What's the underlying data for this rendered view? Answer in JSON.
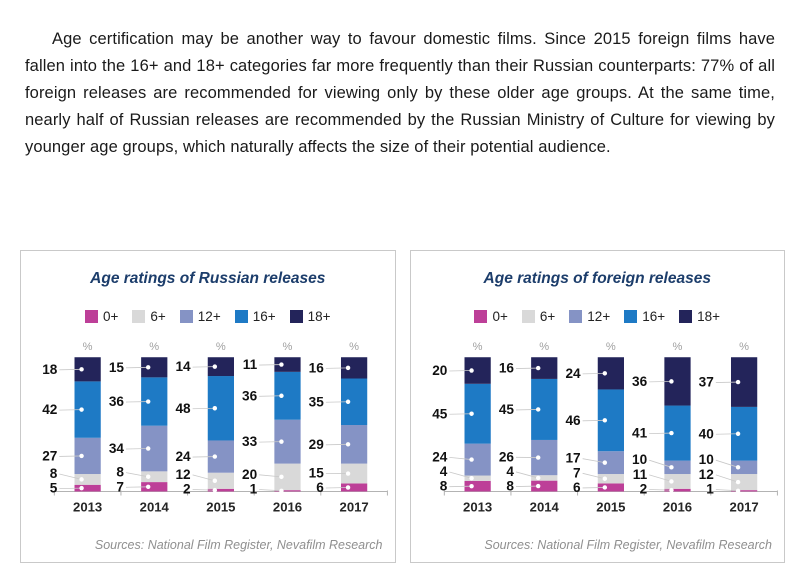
{
  "paragraph": {
    "text": "Age certification may be another way to favour domestic films. Since 2015 foreign films have fallen into the 16+ and 18+ categories far more frequently than their Russian counterparts: 77% of all foreign releases are recommended for viewing only by these older age groups. At the same time, nearly half of Russian releases are recommended by the Russian Ministry of Culture for viewing by younger age groups, which naturally affects the size of their potential audience."
  },
  "chart_data": [
    {
      "type": "bar",
      "stacked": true,
      "percent_total": true,
      "title": "Age ratings of Russian releases",
      "categories": [
        "2013",
        "2014",
        "2015",
        "2016",
        "2017"
      ],
      "series": [
        {
          "name": "0+",
          "color": "#bd3f98",
          "values": [
            5,
            7,
            2,
            1,
            6
          ]
        },
        {
          "name": "6+",
          "color": "#d9d9d9",
          "values": [
            8,
            8,
            12,
            20,
            15
          ]
        },
        {
          "name": "12+",
          "color": "#8593c5",
          "values": [
            27,
            34,
            24,
            33,
            29
          ]
        },
        {
          "name": "16+",
          "color": "#1e7ac5",
          "values": [
            42,
            36,
            48,
            36,
            35
          ]
        },
        {
          "name": "18+",
          "color": "#23245a",
          "values": [
            18,
            15,
            14,
            11,
            16
          ]
        }
      ],
      "unit_label": "%",
      "legend_position": "top",
      "ylim": [
        0,
        100
      ],
      "sources": "Sources: National Film Register, Nevafilm Research"
    },
    {
      "type": "bar",
      "stacked": true,
      "percent_total": true,
      "title": "Age ratings of foreign releases",
      "categories": [
        "2013",
        "2014",
        "2015",
        "2016",
        "2017"
      ],
      "series": [
        {
          "name": "0+",
          "color": "#bd3f98",
          "values": [
            8,
            8,
            6,
            2,
            1
          ]
        },
        {
          "name": "6+",
          "color": "#d9d9d9",
          "values": [
            4,
            4,
            7,
            11,
            12
          ]
        },
        {
          "name": "12+",
          "color": "#8593c5",
          "values": [
            24,
            26,
            17,
            10,
            10
          ]
        },
        {
          "name": "16+",
          "color": "#1e7ac5",
          "values": [
            45,
            45,
            46,
            41,
            40
          ]
        },
        {
          "name": "18+",
          "color": "#23245a",
          "values": [
            20,
            16,
            24,
            36,
            37
          ]
        }
      ],
      "unit_label": "%",
      "legend_position": "top",
      "ylim": [
        0,
        100
      ],
      "sources": "Sources: National Film Register, Nevafilm Research"
    }
  ]
}
